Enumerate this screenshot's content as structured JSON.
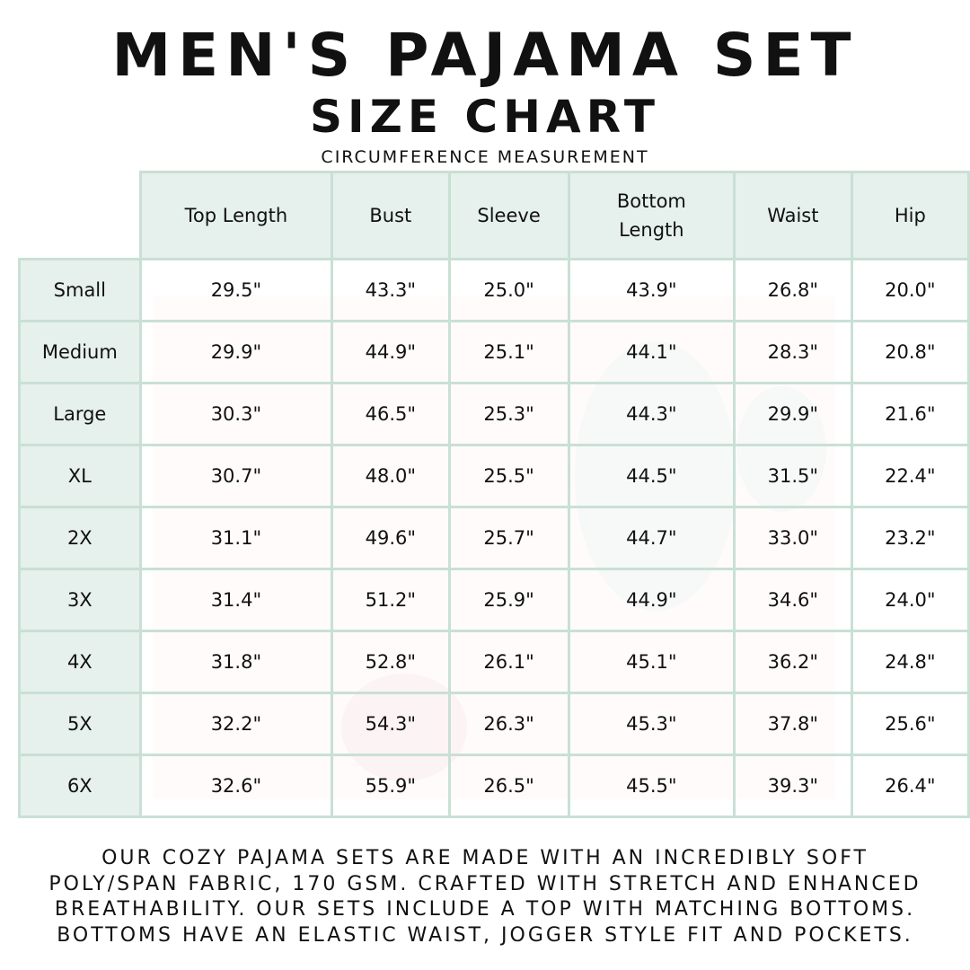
{
  "title": "MEN'S PAJAMA SET",
  "subtitle": "SIZE CHART",
  "caption": "CIRCUMFERENCE MEASUREMENT",
  "colors": {
    "header_bg": "#e6f0ec",
    "border": "#c9e0d5",
    "text": "#111111"
  },
  "table": {
    "columns": [
      "Top Length",
      "Bust",
      "Sleeve",
      "Bottom Length",
      "Waist",
      "Hip"
    ],
    "rows": [
      {
        "size": "Small",
        "values": [
          "29.5\"",
          "43.3\"",
          "25.0\"",
          "43.9\"",
          "26.8\"",
          "20.0\""
        ]
      },
      {
        "size": "Medium",
        "values": [
          "29.9\"",
          "44.9\"",
          "25.1\"",
          "44.1\"",
          "28.3\"",
          "20.8\""
        ]
      },
      {
        "size": "Large",
        "values": [
          "30.3\"",
          "46.5\"",
          "25.3\"",
          "44.3\"",
          "29.9\"",
          "21.6\""
        ]
      },
      {
        "size": "XL",
        "values": [
          "30.7\"",
          "48.0\"",
          "25.5\"",
          "44.5\"",
          "31.5\"",
          "22.4\""
        ]
      },
      {
        "size": "2X",
        "values": [
          "31.1\"",
          "49.6\"",
          "25.7\"",
          "44.7\"",
          "33.0\"",
          "23.2\""
        ]
      },
      {
        "size": "3X",
        "values": [
          "31.4\"",
          "51.2\"",
          "25.9\"",
          "44.9\"",
          "34.6\"",
          "24.0\""
        ]
      },
      {
        "size": "4X",
        "values": [
          "31.8\"",
          "52.8\"",
          "26.1\"",
          "45.1\"",
          "36.2\"",
          "24.8\""
        ]
      },
      {
        "size": "5X",
        "values": [
          "32.2\"",
          "54.3\"",
          "26.3\"",
          "45.3\"",
          "37.8\"",
          "25.6\""
        ]
      },
      {
        "size": "6X",
        "values": [
          "32.6\"",
          "55.9\"",
          "26.5\"",
          "45.5\"",
          "39.3\"",
          "26.4\""
        ]
      }
    ]
  },
  "footer": [
    "Our cozy pajama sets are made with an incredibly soft",
    "poly/span fabric, 170 GSM. Crafted with stretch and enhanced",
    "breathability. Our sets include a top with matching bottoms.",
    "Bottoms have an elastic waist, jogger style fit and pockets."
  ]
}
